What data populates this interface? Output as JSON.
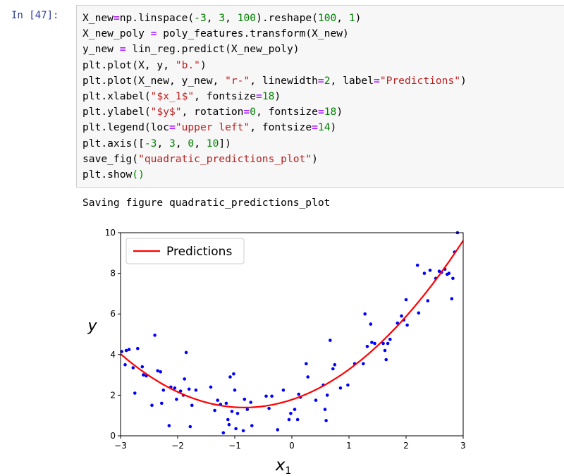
{
  "cell": {
    "prompt": "In [47]:",
    "code_lines": [
      [
        {
          "t": "X_new"
        },
        {
          "t": "=",
          "c": "o"
        },
        {
          "t": "np.linspace("
        },
        {
          "t": "-3",
          "c": "n"
        },
        {
          "t": ", "
        },
        {
          "t": "3",
          "c": "n"
        },
        {
          "t": ", "
        },
        {
          "t": "100",
          "c": "n"
        },
        {
          "t": ").reshape("
        },
        {
          "t": "100",
          "c": "n"
        },
        {
          "t": ", "
        },
        {
          "t": "1",
          "c": "n"
        },
        {
          "t": ")"
        }
      ],
      [
        {
          "t": "X_new_poly "
        },
        {
          "t": "=",
          "c": "o"
        },
        {
          "t": " poly_features.transform(X_new)"
        }
      ],
      [
        {
          "t": "y_new "
        },
        {
          "t": "=",
          "c": "o"
        },
        {
          "t": " lin_reg.predict(X_new_poly)"
        }
      ],
      [
        {
          "t": "plt.plot(X, y, "
        },
        {
          "t": "\"b.\"",
          "c": "s"
        },
        {
          "t": ")"
        }
      ],
      [
        {
          "t": "plt.plot(X_new, y_new, "
        },
        {
          "t": "\"r-\"",
          "c": "s"
        },
        {
          "t": ", linewidth"
        },
        {
          "t": "=",
          "c": "o"
        },
        {
          "t": "2",
          "c": "n"
        },
        {
          "t": ", label"
        },
        {
          "t": "=",
          "c": "o"
        },
        {
          "t": "\"Predictions\"",
          "c": "s"
        },
        {
          "t": ")"
        }
      ],
      [
        {
          "t": "plt.xlabel("
        },
        {
          "t": "\"$x_1$\"",
          "c": "s"
        },
        {
          "t": ", fontsize"
        },
        {
          "t": "=",
          "c": "o"
        },
        {
          "t": "18",
          "c": "n"
        },
        {
          "t": ")"
        }
      ],
      [
        {
          "t": "plt.ylabel("
        },
        {
          "t": "\"$y$\"",
          "c": "s"
        },
        {
          "t": ", rotation"
        },
        {
          "t": "=",
          "c": "o"
        },
        {
          "t": "0",
          "c": "n"
        },
        {
          "t": ", fontsize"
        },
        {
          "t": "=",
          "c": "o"
        },
        {
          "t": "18",
          "c": "n"
        },
        {
          "t": ")"
        }
      ],
      [
        {
          "t": "plt.legend(loc"
        },
        {
          "t": "=",
          "c": "o"
        },
        {
          "t": "\"upper left\"",
          "c": "s"
        },
        {
          "t": ", fontsize"
        },
        {
          "t": "=",
          "c": "o"
        },
        {
          "t": "14",
          "c": "n"
        },
        {
          "t": ")"
        }
      ],
      [
        {
          "t": "plt.axis(["
        },
        {
          "t": "-3",
          "c": "n"
        },
        {
          "t": ", "
        },
        {
          "t": "3",
          "c": "n"
        },
        {
          "t": ", "
        },
        {
          "t": "0",
          "c": "n"
        },
        {
          "t": ", "
        },
        {
          "t": "10",
          "c": "n"
        },
        {
          "t": "])"
        }
      ],
      [
        {
          "t": "save_fig("
        },
        {
          "t": "\"quadratic_predictions_plot\"",
          "c": "s"
        },
        {
          "t": ")"
        }
      ],
      [
        {
          "t": "plt.show"
        },
        {
          "t": "()",
          "c": "n"
        }
      ]
    ]
  },
  "output": {
    "text": "Saving figure quadratic_predictions_plot"
  },
  "colors": {
    "prompt": "#303f9f",
    "string": "#ba2121",
    "number": "#008000",
    "operator": "#aa22ff",
    "points": "#0000ff",
    "line": "#ff0000"
  },
  "chart_data": {
    "type": "scatter",
    "xlim": [
      -3,
      3
    ],
    "ylim": [
      0,
      10
    ],
    "xticks": [
      -3,
      -2,
      -1,
      0,
      1,
      2,
      3
    ],
    "yticks": [
      0,
      2,
      4,
      6,
      8,
      10
    ],
    "xtick_labels": [
      "−3",
      "−2",
      "−1",
      "0",
      "1",
      "2",
      "3"
    ],
    "ytick_labels": [
      "0",
      "2",
      "4",
      "6",
      "8",
      "10"
    ],
    "xlabel_main": "x",
    "xlabel_sub": "1",
    "ylabel": "y",
    "legend": {
      "label": "Predictions",
      "position": "upper left"
    },
    "series": [
      {
        "type": "line",
        "name": "Predictions",
        "color": "#ff0000",
        "coef": [
          1.78,
          0.93,
          0.56
        ]
      },
      {
        "type": "scatter",
        "color": "#0000ff",
        "points": [
          [
            -2.98,
            4.15
          ],
          [
            -2.92,
            3.5
          ],
          [
            -2.9,
            4.2
          ],
          [
            -2.85,
            4.25
          ],
          [
            -2.78,
            3.35
          ],
          [
            -2.75,
            2.1
          ],
          [
            -2.7,
            4.3
          ],
          [
            -2.62,
            3.4
          ],
          [
            -2.6,
            3.0
          ],
          [
            -2.55,
            2.95
          ],
          [
            -2.45,
            1.5
          ],
          [
            -2.4,
            4.95
          ],
          [
            -2.35,
            3.2
          ],
          [
            -2.3,
            3.15
          ],
          [
            -2.28,
            1.6
          ],
          [
            -2.25,
            2.25
          ],
          [
            -2.15,
            0.5
          ],
          [
            -2.12,
            2.4
          ],
          [
            -2.05,
            2.35
          ],
          [
            -2.02,
            1.8
          ],
          [
            -1.95,
            2.2
          ],
          [
            -1.9,
            2.0
          ],
          [
            -1.88,
            2.8
          ],
          [
            -1.85,
            4.1
          ],
          [
            -1.8,
            2.3
          ],
          [
            -1.78,
            0.45
          ],
          [
            -1.75,
            1.5
          ],
          [
            -1.68,
            2.25
          ],
          [
            -1.42,
            2.4
          ],
          [
            -1.35,
            1.25
          ],
          [
            -1.3,
            1.75
          ],
          [
            -1.25,
            1.55
          ],
          [
            -1.2,
            0.15
          ],
          [
            -1.15,
            1.6
          ],
          [
            -1.12,
            0.8
          ],
          [
            -1.1,
            0.55
          ],
          [
            -1.08,
            2.9
          ],
          [
            -1.05,
            1.2
          ],
          [
            -1.02,
            3.05
          ],
          [
            -1.0,
            2.25
          ],
          [
            -0.98,
            0.35
          ],
          [
            -0.95,
            1.1
          ],
          [
            -0.85,
            0.25
          ],
          [
            -0.83,
            1.8
          ],
          [
            -0.78,
            1.3
          ],
          [
            -0.72,
            1.65
          ],
          [
            -0.7,
            0.5
          ],
          [
            -0.45,
            1.95
          ],
          [
            -0.4,
            1.35
          ],
          [
            -0.35,
            1.95
          ],
          [
            -0.25,
            0.3
          ],
          [
            -0.15,
            2.25
          ],
          [
            -0.05,
            0.8
          ],
          [
            -0.02,
            1.1
          ],
          [
            0.05,
            1.3
          ],
          [
            0.1,
            0.8
          ],
          [
            0.12,
            2.05
          ],
          [
            0.15,
            1.9
          ],
          [
            0.25,
            3.55
          ],
          [
            0.28,
            2.9
          ],
          [
            0.42,
            1.75
          ],
          [
            0.55,
            2.5
          ],
          [
            0.58,
            1.3
          ],
          [
            0.6,
            0.75
          ],
          [
            0.62,
            2.0
          ],
          [
            0.67,
            4.7
          ],
          [
            0.72,
            3.3
          ],
          [
            0.75,
            3.5
          ],
          [
            0.85,
            2.35
          ],
          [
            0.98,
            2.5
          ],
          [
            1.1,
            3.55
          ],
          [
            1.25,
            3.55
          ],
          [
            1.28,
            6.0
          ],
          [
            1.32,
            4.4
          ],
          [
            1.38,
            5.5
          ],
          [
            1.4,
            4.6
          ],
          [
            1.45,
            4.55
          ],
          [
            1.6,
            4.55
          ],
          [
            1.63,
            4.2
          ],
          [
            1.65,
            3.75
          ],
          [
            1.68,
            4.55
          ],
          [
            1.72,
            4.75
          ],
          [
            1.85,
            5.55
          ],
          [
            1.92,
            5.9
          ],
          [
            1.96,
            5.7
          ],
          [
            2.0,
            6.7
          ],
          [
            2.02,
            5.45
          ],
          [
            2.2,
            8.4
          ],
          [
            2.22,
            6.05
          ],
          [
            2.32,
            8.0
          ],
          [
            2.38,
            6.65
          ],
          [
            2.42,
            8.15
          ],
          [
            2.52,
            7.75
          ],
          [
            2.58,
            8.1
          ],
          [
            2.62,
            8.05
          ],
          [
            2.68,
            8.2
          ],
          [
            2.72,
            7.95
          ],
          [
            2.75,
            8.0
          ],
          [
            2.8,
            6.75
          ],
          [
            2.82,
            7.75
          ],
          [
            2.85,
            9.05
          ],
          [
            2.9,
            10.0
          ]
        ]
      }
    ]
  }
}
